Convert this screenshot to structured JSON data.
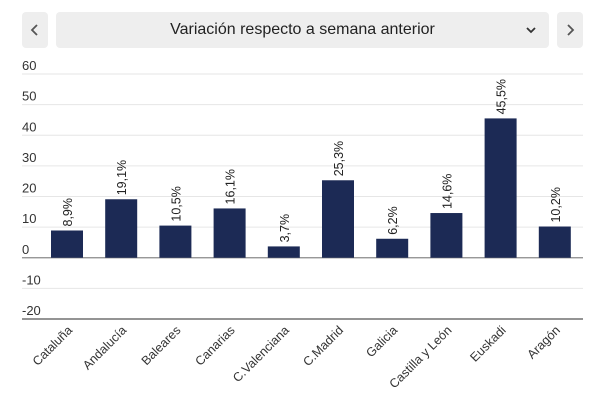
{
  "header": {
    "prev_icon": "chevron-left-icon",
    "next_icon": "chevron-right-icon",
    "dropdown_icon": "chevron-down-icon",
    "selected_view": "Variación respecto a semana anterior"
  },
  "chart_data": {
    "type": "bar",
    "title": "",
    "xlabel": "",
    "ylabel": "",
    "ylim": [
      -20,
      60
    ],
    "y_ticks": [
      "60",
      "50",
      "40",
      "30",
      "20",
      "10",
      "0",
      "-10",
      "-20"
    ],
    "y_tick_values": [
      60,
      50,
      40,
      30,
      20,
      10,
      0,
      -10,
      -20
    ],
    "grid": true,
    "bar_color": "#1c2a55",
    "categories": [
      "Cataluña",
      "Andalucía",
      "Baleares",
      "Canarias",
      "C.Valenciana",
      "C.Madrid",
      "Galicia",
      "Castilla y León",
      "Euskadi",
      "Aragón"
    ],
    "values": [
      8.9,
      19.1,
      10.5,
      16.1,
      3.7,
      25.3,
      6.2,
      14.6,
      45.5,
      10.2
    ],
    "value_labels": [
      "8,9%",
      "19,1%",
      "10,5%",
      "16,1%",
      "3,7%",
      "25,3%",
      "6,2%",
      "14,6%",
      "45,5%",
      "10,2%"
    ]
  }
}
